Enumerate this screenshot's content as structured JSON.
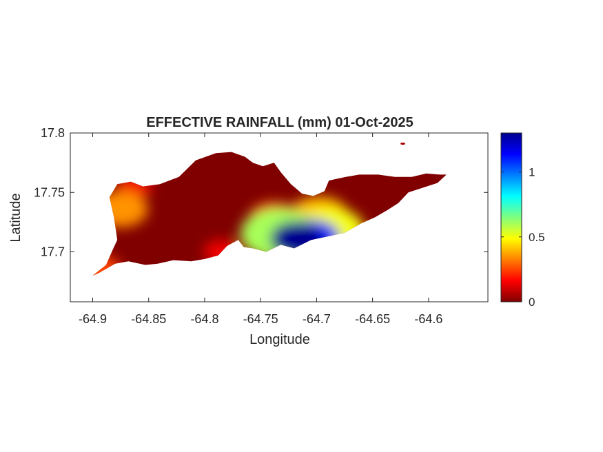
{
  "figure": {
    "title": "EFFECTIVE RAINFALL (mm) 01-Oct-2025",
    "xlabel": "Longitude",
    "ylabel": "Latitude"
  },
  "map": {
    "type": "heatmap",
    "region": "St. Croix island rainfall surface",
    "xlim": [
      -64.92,
      -64.547
    ],
    "ylim": [
      17.658,
      17.8
    ],
    "x_ticks": [
      "-64.9",
      "-64.85",
      "-64.8",
      "-64.75",
      "-64.7",
      "-64.65",
      "-64.6"
    ],
    "x_tick_values": [
      -64.9,
      -64.85,
      -64.8,
      -64.75,
      -64.7,
      -64.65,
      -64.6
    ],
    "y_ticks": [
      "17.7",
      "17.75",
      "17.8"
    ],
    "y_tick_values": [
      17.7,
      17.75,
      17.8
    ],
    "colorbar": {
      "colormap": "jet",
      "range": [
        0,
        1.3
      ],
      "ticks": [
        "0",
        "0.5",
        "1"
      ],
      "tick_values": [
        0,
        0.5,
        1
      ]
    },
    "island_outline_lonlat": [
      [
        -64.9,
        17.68
      ],
      [
        -64.888,
        17.689
      ],
      [
        -64.882,
        17.702
      ],
      [
        -64.878,
        17.71
      ],
      [
        -64.881,
        17.729
      ],
      [
        -64.885,
        17.746
      ],
      [
        -64.878,
        17.757
      ],
      [
        -64.866,
        17.759
      ],
      [
        -64.855,
        17.755
      ],
      [
        -64.84,
        17.757
      ],
      [
        -64.823,
        17.763
      ],
      [
        -64.808,
        17.777
      ],
      [
        -64.79,
        17.783
      ],
      [
        -64.776,
        17.784
      ],
      [
        -64.764,
        17.78
      ],
      [
        -64.757,
        17.775
      ],
      [
        -64.748,
        17.772
      ],
      [
        -64.738,
        17.775
      ],
      [
        -64.732,
        17.767
      ],
      [
        -64.723,
        17.757
      ],
      [
        -64.713,
        17.749
      ],
      [
        -64.703,
        17.747
      ],
      [
        -64.693,
        17.751
      ],
      [
        -64.689,
        17.76
      ],
      [
        -64.674,
        17.763
      ],
      [
        -64.662,
        17.765
      ],
      [
        -64.645,
        17.765
      ],
      [
        -64.63,
        17.763
      ],
      [
        -64.615,
        17.763
      ],
      [
        -64.602,
        17.766
      ],
      [
        -64.59,
        17.765
      ],
      [
        -64.584,
        17.765
      ],
      [
        -64.592,
        17.758
      ],
      [
        -64.605,
        17.754
      ],
      [
        -64.618,
        17.75
      ],
      [
        -64.627,
        17.741
      ],
      [
        -64.637,
        17.735
      ],
      [
        -64.648,
        17.729
      ],
      [
        -64.66,
        17.724
      ],
      [
        -64.675,
        17.716
      ],
      [
        -64.69,
        17.713
      ],
      [
        -64.705,
        17.71
      ],
      [
        -64.72,
        17.703
      ],
      [
        -64.732,
        17.706
      ],
      [
        -64.745,
        17.7
      ],
      [
        -64.757,
        17.703
      ],
      [
        -64.765,
        17.704
      ],
      [
        -64.77,
        17.71
      ],
      [
        -64.78,
        17.705
      ],
      [
        -64.788,
        17.697
      ],
      [
        -64.8,
        17.694
      ],
      [
        -64.812,
        17.692
      ],
      [
        -64.828,
        17.693
      ],
      [
        -64.842,
        17.69
      ],
      [
        -64.853,
        17.689
      ],
      [
        -64.868,
        17.692
      ],
      [
        -64.88,
        17.69
      ],
      [
        -64.895,
        17.682
      ]
    ],
    "islet_lonlat": [
      -64.623,
      17.791
    ],
    "rainfall_hotspots": [
      {
        "lon": -64.875,
        "lat": 17.736,
        "value": 0.35
      },
      {
        "lon": -64.862,
        "lat": 17.756,
        "value": 0.15
      },
      {
        "lon": -64.738,
        "lat": 17.728,
        "value": 0.3
      },
      {
        "lon": -64.698,
        "lat": 17.73,
        "value": 0.4
      },
      {
        "lon": -64.718,
        "lat": 17.711,
        "value": 1.3
      },
      {
        "lon": -64.703,
        "lat": 17.712,
        "value": 1.1
      },
      {
        "lon": -64.733,
        "lat": 17.715,
        "value": 0.6
      },
      {
        "lon": -64.688,
        "lat": 17.718,
        "value": 0.5
      },
      {
        "lon": -64.785,
        "lat": 17.7,
        "value": 0.15
      },
      {
        "lon": -64.895,
        "lat": 17.685,
        "value": 0.25
      }
    ],
    "background_value": 0.0
  }
}
